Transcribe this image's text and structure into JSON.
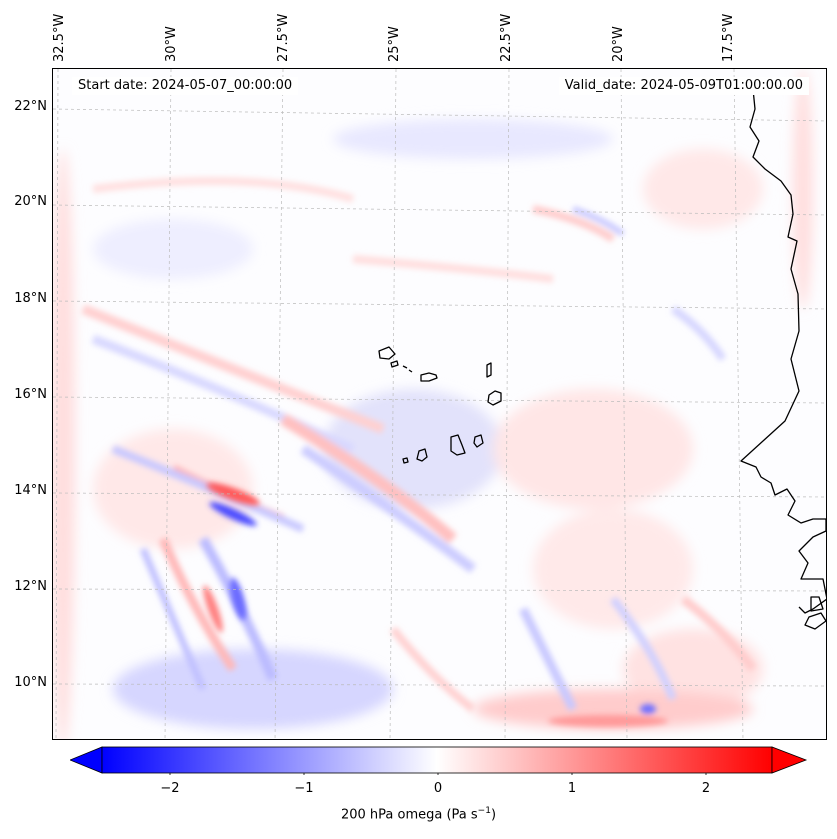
{
  "map": {
    "start_date": "Start date: 2024-05-07_00:00:00",
    "valid_date": "Valid_date: 2024-05-09T01:00:00.00",
    "latitude_labels": [
      "22°N",
      "20°N",
      "18°N",
      "16°N",
      "14°N",
      "12°N",
      "10°N"
    ],
    "longitude_labels": [
      "32.5°W",
      "30°W",
      "27.5°W",
      "25°W",
      "22.5°W",
      "20°W",
      "17.5°W"
    ],
    "coastline_color": "#000000",
    "gridlines": "on"
  },
  "colorbar": {
    "cmap_low": "#0000ff",
    "cmap_mid": "#ffffff",
    "cmap_high": "#ff0000",
    "range": [
      -2.7,
      2.7
    ],
    "extend": "both",
    "ticks": [
      "−2",
      "−1",
      "0",
      "1",
      "2"
    ],
    "tick_values": [
      -2,
      -1,
      0,
      1,
      2
    ],
    "label_prefix": "200 hPa omega (Pa s",
    "label_exponent": "−1",
    "label_suffix": ")"
  }
}
